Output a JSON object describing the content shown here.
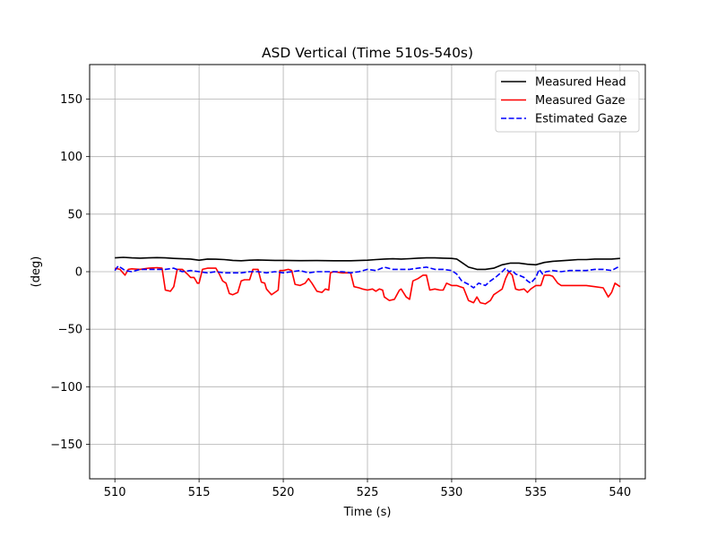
{
  "chart_data": {
    "type": "line",
    "title": "ASD Vertical (Time 510s-540s)",
    "xlabel": "Time (s)",
    "ylabel": "(deg)",
    "xlim": [
      508.5,
      541.5
    ],
    "ylim": [
      -180,
      180
    ],
    "xticks": [
      510,
      515,
      520,
      525,
      530,
      535,
      540
    ],
    "yticks": [
      -150,
      -100,
      -50,
      0,
      50,
      100,
      150
    ],
    "ytick_labels": [
      "−150",
      "−100",
      "−50",
      "0",
      "50",
      "100",
      "150"
    ],
    "grid": true,
    "legend_position": "top-right",
    "series": [
      {
        "name": "Measured Head",
        "color": "#000000",
        "dash": "solid",
        "points": [
          [
            510,
            12
          ],
          [
            510.5,
            12.5
          ],
          [
            511,
            12
          ],
          [
            511.5,
            11.8
          ],
          [
            512,
            12
          ],
          [
            512.5,
            12.2
          ],
          [
            513,
            12
          ],
          [
            513.5,
            11.5
          ],
          [
            514,
            11.2
          ],
          [
            514.5,
            11
          ],
          [
            515,
            10
          ],
          [
            515.5,
            11
          ],
          [
            516,
            10.8
          ],
          [
            516.5,
            10.5
          ],
          [
            517,
            9.8
          ],
          [
            517.5,
            9.5
          ],
          [
            518,
            10
          ],
          [
            518.5,
            10.2
          ],
          [
            519,
            10
          ],
          [
            519.5,
            9.8
          ],
          [
            520,
            9.8
          ],
          [
            521,
            9.6
          ],
          [
            522,
            9.7
          ],
          [
            523,
            9.5
          ],
          [
            524,
            9.5
          ],
          [
            525,
            10
          ],
          [
            525.5,
            10.5
          ],
          [
            526,
            11
          ],
          [
            526.5,
            11.2
          ],
          [
            527,
            11
          ],
          [
            527.5,
            11.3
          ],
          [
            528,
            11.8
          ],
          [
            528.5,
            12
          ],
          [
            529,
            12
          ],
          [
            529.5,
            11.8
          ],
          [
            530,
            11.5
          ],
          [
            530.3,
            11
          ],
          [
            530.6,
            8
          ],
          [
            531,
            4
          ],
          [
            531.5,
            2
          ],
          [
            532,
            2
          ],
          [
            532.5,
            3
          ],
          [
            533,
            6
          ],
          [
            533.5,
            7.5
          ],
          [
            534,
            7.5
          ],
          [
            534.5,
            6.5
          ],
          [
            535,
            6
          ],
          [
            535.5,
            8
          ],
          [
            536,
            9
          ],
          [
            536.5,
            9.5
          ],
          [
            537,
            10
          ],
          [
            537.5,
            10.5
          ],
          [
            538,
            10.5
          ],
          [
            538.5,
            11
          ],
          [
            539,
            11
          ],
          [
            539.5,
            11
          ],
          [
            540,
            11.5
          ]
        ]
      },
      {
        "name": "Measured Gaze",
        "color": "#ff0000",
        "dash": "solid",
        "points": [
          [
            510,
            3
          ],
          [
            510.3,
            2
          ],
          [
            510.6,
            -3
          ],
          [
            510.8,
            2
          ],
          [
            511,
            2.5
          ],
          [
            511.5,
            2
          ],
          [
            512,
            3
          ],
          [
            512.5,
            3.5
          ],
          [
            512.8,
            3
          ],
          [
            513,
            -16
          ],
          [
            513.3,
            -17
          ],
          [
            513.5,
            -13
          ],
          [
            513.7,
            2
          ],
          [
            514,
            2
          ],
          [
            514.3,
            -2
          ],
          [
            514.5,
            -5
          ],
          [
            514.7,
            -5
          ],
          [
            514.9,
            -10
          ],
          [
            515,
            -10
          ],
          [
            515.2,
            2
          ],
          [
            515.5,
            3
          ],
          [
            516,
            3
          ],
          [
            516.2,
            -2
          ],
          [
            516.4,
            -8
          ],
          [
            516.6,
            -10
          ],
          [
            516.8,
            -19
          ],
          [
            517,
            -20
          ],
          [
            517.3,
            -18
          ],
          [
            517.5,
            -8
          ],
          [
            517.7,
            -7
          ],
          [
            518,
            -7
          ],
          [
            518.2,
            2
          ],
          [
            518.5,
            2
          ],
          [
            518.7,
            -9
          ],
          [
            518.9,
            -10
          ],
          [
            519,
            -15
          ],
          [
            519.3,
            -20
          ],
          [
            519.5,
            -18
          ],
          [
            519.7,
            -16
          ],
          [
            519.8,
            1
          ],
          [
            520,
            1
          ],
          [
            520.3,
            2
          ],
          [
            520.5,
            1
          ],
          [
            520.7,
            -11
          ],
          [
            521,
            -12
          ],
          [
            521.3,
            -10
          ],
          [
            521.5,
            -6
          ],
          [
            521.7,
            -10
          ],
          [
            522,
            -17
          ],
          [
            522.3,
            -18
          ],
          [
            522.5,
            -15
          ],
          [
            522.7,
            -16
          ],
          [
            522.8,
            -1
          ],
          [
            523,
            0
          ],
          [
            523.5,
            -1
          ],
          [
            524,
            -1
          ],
          [
            524.2,
            -13
          ],
          [
            524.5,
            -14
          ],
          [
            524.7,
            -15
          ],
          [
            525,
            -16
          ],
          [
            525.3,
            -15
          ],
          [
            525.5,
            -17
          ],
          [
            525.7,
            -15
          ],
          [
            525.9,
            -16
          ],
          [
            526,
            -22
          ],
          [
            526.3,
            -25
          ],
          [
            526.6,
            -24
          ],
          [
            526.9,
            -16
          ],
          [
            527,
            -15
          ],
          [
            527.3,
            -22
          ],
          [
            527.5,
            -24
          ],
          [
            527.7,
            -8
          ],
          [
            528,
            -6
          ],
          [
            528.3,
            -3
          ],
          [
            528.5,
            -3
          ],
          [
            528.7,
            -16
          ],
          [
            529,
            -15
          ],
          [
            529.3,
            -16
          ],
          [
            529.5,
            -16
          ],
          [
            529.7,
            -10
          ],
          [
            530,
            -12
          ],
          [
            530.3,
            -12
          ],
          [
            530.5,
            -13
          ],
          [
            530.7,
            -14
          ],
          [
            531,
            -25
          ],
          [
            531.3,
            -27
          ],
          [
            531.5,
            -22
          ],
          [
            531.7,
            -27
          ],
          [
            532,
            -28
          ],
          [
            532.3,
            -25
          ],
          [
            532.5,
            -20
          ],
          [
            532.7,
            -18
          ],
          [
            533,
            -15
          ],
          [
            533.2,
            -6
          ],
          [
            533.4,
            0
          ],
          [
            533.6,
            -3
          ],
          [
            533.8,
            -15
          ],
          [
            534,
            -16
          ],
          [
            534.3,
            -15
          ],
          [
            534.5,
            -18
          ],
          [
            534.7,
            -15
          ],
          [
            535,
            -12
          ],
          [
            535.3,
            -12
          ],
          [
            535.5,
            -3
          ],
          [
            535.8,
            -3
          ],
          [
            536,
            -4
          ],
          [
            536.3,
            -10
          ],
          [
            536.5,
            -12
          ],
          [
            537,
            -12
          ],
          [
            537.5,
            -12
          ],
          [
            538,
            -12
          ],
          [
            538.5,
            -13
          ],
          [
            539,
            -14
          ],
          [
            539.3,
            -22
          ],
          [
            539.5,
            -18
          ],
          [
            539.7,
            -10
          ],
          [
            540,
            -13
          ]
        ]
      },
      {
        "name": "Estimated Gaze",
        "color": "#0000ff",
        "dash": "dashed",
        "points": [
          [
            510,
            1
          ],
          [
            510.2,
            5
          ],
          [
            510.4,
            3
          ],
          [
            510.6,
            1
          ],
          [
            511,
            0
          ],
          [
            511.5,
            2
          ],
          [
            512,
            2
          ],
          [
            512.5,
            2
          ],
          [
            513,
            2
          ],
          [
            513.5,
            3
          ],
          [
            514,
            0
          ],
          [
            514.5,
            1
          ],
          [
            515,
            0
          ],
          [
            515.5,
            -1
          ],
          [
            516,
            0
          ],
          [
            516.5,
            -1
          ],
          [
            517,
            -1
          ],
          [
            517.5,
            -1
          ],
          [
            518,
            0
          ],
          [
            518.5,
            0
          ],
          [
            519,
            -1
          ],
          [
            519.5,
            0
          ],
          [
            520,
            -1
          ],
          [
            520.5,
            0
          ],
          [
            521,
            1
          ],
          [
            521.5,
            -1
          ],
          [
            522,
            0
          ],
          [
            522.5,
            0
          ],
          [
            523,
            0
          ],
          [
            523.5,
            0
          ],
          [
            524,
            -1
          ],
          [
            524.5,
            0
          ],
          [
            525,
            2
          ],
          [
            525.5,
            1
          ],
          [
            526,
            4
          ],
          [
            526.5,
            2
          ],
          [
            527,
            2
          ],
          [
            527.5,
            2
          ],
          [
            528,
            3
          ],
          [
            528.5,
            4
          ],
          [
            529,
            2
          ],
          [
            529.5,
            2
          ],
          [
            530,
            1
          ],
          [
            530.3,
            -2
          ],
          [
            530.6,
            -8
          ],
          [
            531,
            -11
          ],
          [
            531.3,
            -14
          ],
          [
            531.6,
            -10
          ],
          [
            532,
            -12
          ],
          [
            532.3,
            -8
          ],
          [
            532.6,
            -5
          ],
          [
            533,
            0
          ],
          [
            533.2,
            3
          ],
          [
            533.4,
            0
          ],
          [
            533.6,
            1
          ],
          [
            533.8,
            -2
          ],
          [
            534,
            -3
          ],
          [
            534.3,
            -5
          ],
          [
            534.5,
            -8
          ],
          [
            534.7,
            -10
          ],
          [
            535,
            -5
          ],
          [
            535.2,
            2
          ],
          [
            535.4,
            -2
          ],
          [
            535.6,
            0
          ],
          [
            536,
            1
          ],
          [
            536.5,
            0
          ],
          [
            537,
            1
          ],
          [
            537.5,
            1
          ],
          [
            538,
            1
          ],
          [
            538.5,
            2
          ],
          [
            539,
            2
          ],
          [
            539.5,
            1
          ],
          [
            540,
            5
          ]
        ]
      }
    ]
  }
}
